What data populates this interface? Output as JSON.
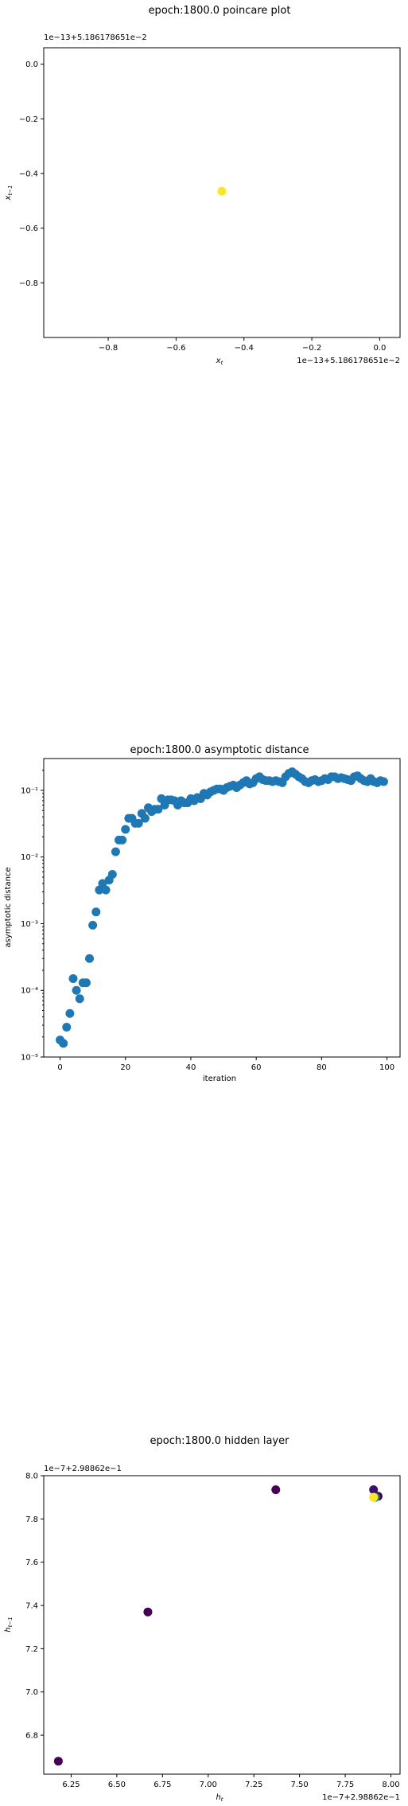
{
  "chart_data": [
    {
      "type": "scatter",
      "title": "epoch:1800.0 poincare plot",
      "xlabel": "x_t",
      "ylabel": "x_{t-1}",
      "offset_label_y": "1e−13+5.186178651e−2",
      "offset_label_x": "1e−13+5.186178651e−2",
      "xlim": [
        -0.99,
        0.06
      ],
      "ylim": [
        -1.0,
        0.06
      ],
      "xticks": [
        -0.8,
        -0.6,
        -0.4,
        -0.2,
        0.0
      ],
      "yticks": [
        0.0,
        -0.2,
        -0.4,
        -0.6,
        -0.8
      ],
      "xtick_labels": [
        "−0.8",
        "−0.6",
        "−0.4",
        "−0.2",
        "0.0"
      ],
      "ytick_labels": [
        "0.0",
        "−0.2",
        "−0.4",
        "−0.6",
        "−0.8"
      ],
      "grid": false,
      "points": [
        {
          "x": -0.465,
          "y": -0.465,
          "color": "#fde725"
        }
      ]
    },
    {
      "type": "scatter",
      "title": "epoch:1800.0 asymptotic distance",
      "xlabel": "iteration",
      "ylabel": "asymptotic distance",
      "yscale": "log",
      "xlim": [
        -5,
        104
      ],
      "ylim": [
        1e-05,
        0.3
      ],
      "xticks": [
        0,
        20,
        40,
        60,
        80,
        100
      ],
      "xtick_labels": [
        "0",
        "20",
        "40",
        "60",
        "80",
        "100"
      ],
      "yticks": [
        1e-05,
        0.0001,
        0.001,
        0.01,
        0.1
      ],
      "ytick_labels": [
        "10⁻⁵",
        "10⁻⁴",
        "10⁻³",
        "10⁻²",
        "10⁻¹"
      ],
      "grid": false,
      "color": "#1f77b4",
      "x": [
        0,
        1,
        2,
        3,
        4,
        5,
        6,
        7,
        8,
        9,
        10,
        11,
        12,
        13,
        14,
        15,
        16,
        17,
        18,
        19,
        20,
        21,
        22,
        23,
        24,
        25,
        26,
        27,
        28,
        29,
        30,
        31,
        32,
        33,
        34,
        35,
        36,
        37,
        38,
        39,
        40,
        41,
        42,
        43,
        44,
        45,
        46,
        47,
        48,
        49,
        50,
        51,
        52,
        53,
        54,
        55,
        56,
        57,
        58,
        59,
        60,
        61,
        62,
        63,
        64,
        65,
        66,
        67,
        68,
        69,
        70,
        71,
        72,
        73,
        74,
        75,
        76,
        77,
        78,
        79,
        80,
        81,
        82,
        83,
        84,
        85,
        86,
        87,
        88,
        89,
        90,
        91,
        92,
        93,
        94,
        95,
        96,
        97,
        98,
        99
      ],
      "y": [
        1.8e-05,
        1.6e-05,
        2.8e-05,
        4.5e-05,
        0.00015,
        0.0001,
        7.5e-05,
        0.00013,
        0.00013,
        0.0003,
        0.00095,
        0.0015,
        0.0032,
        0.004,
        0.0032,
        0.0045,
        0.0055,
        0.012,
        0.018,
        0.018,
        0.026,
        0.038,
        0.038,
        0.032,
        0.032,
        0.045,
        0.038,
        0.055,
        0.048,
        0.052,
        0.052,
        0.075,
        0.06,
        0.072,
        0.072,
        0.07,
        0.06,
        0.07,
        0.065,
        0.065,
        0.075,
        0.07,
        0.078,
        0.075,
        0.09,
        0.085,
        0.095,
        0.1,
        0.105,
        0.105,
        0.1,
        0.11,
        0.115,
        0.12,
        0.11,
        0.12,
        0.13,
        0.14,
        0.125,
        0.13,
        0.15,
        0.16,
        0.145,
        0.14,
        0.14,
        0.135,
        0.14,
        0.135,
        0.13,
        0.16,
        0.18,
        0.19,
        0.175,
        0.16,
        0.15,
        0.135,
        0.13,
        0.14,
        0.145,
        0.135,
        0.14,
        0.15,
        0.145,
        0.16,
        0.16,
        0.15,
        0.155,
        0.15,
        0.145,
        0.14,
        0.16,
        0.165,
        0.15,
        0.14,
        0.135,
        0.15,
        0.135,
        0.13,
        0.14,
        0.135
      ]
    },
    {
      "type": "scatter",
      "title": "epoch:1800.0 hidden layer",
      "xlabel": "h_t",
      "ylabel": "h_{t-1}",
      "offset_label_y": "1e−7+2.98862e−1",
      "offset_label_x": "1e−7+2.98862e−1",
      "xlim": [
        6.1,
        8.05
      ],
      "ylim": [
        6.62,
        8.0
      ],
      "xticks": [
        6.25,
        6.5,
        6.75,
        7.0,
        7.25,
        7.5,
        7.75,
        8.0
      ],
      "xtick_labels": [
        "6.25",
        "6.50",
        "6.75",
        "7.00",
        "7.25",
        "7.50",
        "7.75",
        "8.00"
      ],
      "yticks": [
        8.0,
        7.8,
        7.6,
        7.4,
        7.2,
        7.0,
        6.8
      ],
      "ytick_labels": [
        "8.0",
        "7.8",
        "7.6",
        "7.4",
        "7.2",
        "7.0",
        "6.8"
      ],
      "grid": false,
      "points": [
        {
          "x": 6.18,
          "y": 6.68,
          "color": "#440154"
        },
        {
          "x": 6.67,
          "y": 7.37,
          "color": "#440154"
        },
        {
          "x": 7.37,
          "y": 7.935,
          "color": "#440154"
        },
        {
          "x": 7.905,
          "y": 7.935,
          "color": "#3b0f70"
        },
        {
          "x": 7.93,
          "y": 7.905,
          "color": "#440154"
        },
        {
          "x": 7.915,
          "y": 7.9,
          "color": "#21918c"
        },
        {
          "x": 7.905,
          "y": 7.9,
          "color": "#fde725"
        }
      ]
    }
  ]
}
